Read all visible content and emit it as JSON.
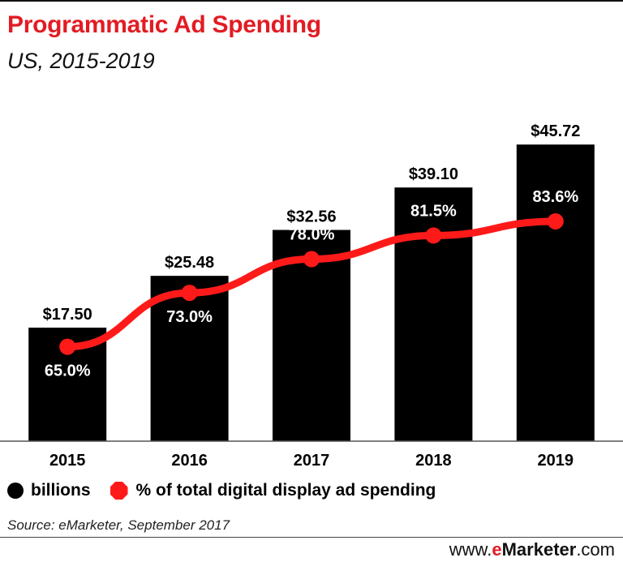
{
  "header": {
    "title": "Programmatic Ad Spending",
    "subtitle": "US, 2015-2019"
  },
  "chart_data": {
    "type": "bar",
    "title": "Programmatic Ad Spending",
    "subtitle": "US, 2015-2019",
    "categories": [
      "2015",
      "2016",
      "2017",
      "2018",
      "2019"
    ],
    "series": [
      {
        "name": "billions",
        "type": "bar",
        "color": "#000000",
        "values": [
          17.5,
          25.48,
          32.56,
          39.1,
          45.72
        ],
        "labels": [
          "$17.50",
          "$25.48",
          "$32.56",
          "$39.10",
          "$45.72"
        ]
      },
      {
        "name": "% of total digital display ad spending",
        "type": "line",
        "color": "#ff1a1a",
        "values": [
          65.0,
          73.0,
          78.0,
          81.5,
          83.6
        ],
        "labels": [
          "65.0%",
          "73.0%",
          "78.0%",
          "81.5%",
          "83.6%"
        ]
      }
    ],
    "xlabel": "",
    "ylabel": "",
    "ylim": [
      0,
      53
    ],
    "y2lim": [
      51,
      102
    ],
    "grid": false,
    "legend_position": "bottom-left"
  },
  "legend": {
    "bar_label": "billions",
    "line_label": "% of total digital display ad spending"
  },
  "footer": {
    "source": "Source: eMarketer, September 2017",
    "brand_prefix": "www.",
    "brand_e": "e",
    "brand_rest": "Marketer",
    "brand_suffix": ".com"
  }
}
